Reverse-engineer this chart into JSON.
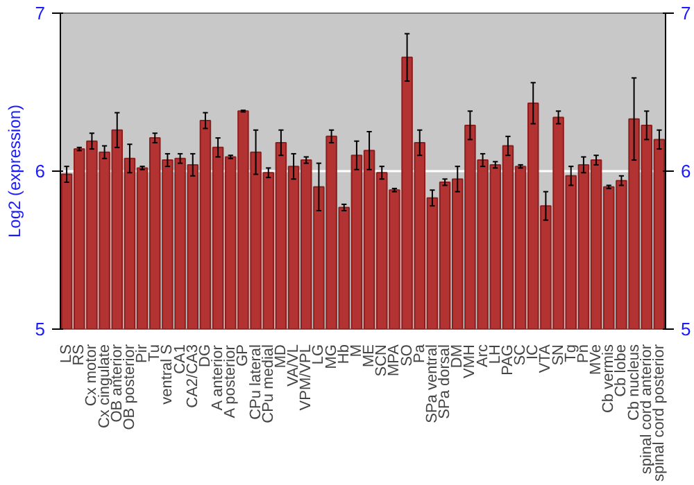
{
  "chart_data": {
    "type": "bar",
    "ylabel": "Log2 (expression)",
    "categories": [
      "LS",
      "RS",
      "Cx motor",
      "Cx cingulate",
      "OB anterior",
      "OB posterior",
      "Pir",
      "Tu",
      "ventral S",
      "CA1",
      "CA2/CA3",
      "DG",
      "A anterior",
      "A posterior",
      "GP",
      "CPu lateral",
      "CPu medial",
      "MD",
      "VA/VL",
      "VPM/VPL",
      "LG",
      "MG",
      "Hb",
      "M",
      "ME",
      "SCN",
      "MPA",
      "SO",
      "Pa",
      "SPa ventral",
      "SPa dorsal",
      "DM",
      "VMH",
      "Arc",
      "LH",
      "PAG",
      "SC",
      "IC",
      "VTA",
      "SN",
      "Tg",
      "Pn",
      "MVe",
      "Cb vermis",
      "Cb lobe",
      "Cb nucleus",
      "spinal cord anterior",
      "spinal cord posterior"
    ],
    "values": [
      5.98,
      6.14,
      6.19,
      6.12,
      6.26,
      6.08,
      6.02,
      6.21,
      6.07,
      6.08,
      6.04,
      6.32,
      6.15,
      6.09,
      6.38,
      6.12,
      5.99,
      6.18,
      6.03,
      6.07,
      5.9,
      6.22,
      5.77,
      6.1,
      6.13,
      5.99,
      5.88,
      6.72,
      6.18,
      5.83,
      5.93,
      5.95,
      6.29,
      6.07,
      6.04,
      6.16,
      6.03,
      6.43,
      5.78,
      6.34,
      5.97,
      6.04,
      6.07,
      5.9,
      5.94,
      6.33,
      6.29,
      6.2
    ],
    "errors": [
      0.05,
      0.01,
      0.05,
      0.04,
      0.11,
      0.09,
      0.01,
      0.03,
      0.04,
      0.03,
      0.07,
      0.05,
      0.06,
      0.01,
      0.005,
      0.14,
      0.03,
      0.08,
      0.08,
      0.02,
      0.15,
      0.04,
      0.02,
      0.09,
      0.12,
      0.04,
      0.01,
      0.15,
      0.08,
      0.05,
      0.02,
      0.08,
      0.09,
      0.04,
      0.02,
      0.06,
      0.01,
      0.13,
      0.09,
      0.04,
      0.06,
      0.05,
      0.03,
      0.01,
      0.03,
      0.26,
      0.09,
      0.06
    ],
    "color": "#b33333",
    "ylim": [
      5,
      7
    ],
    "yticks": [
      5,
      6,
      7
    ],
    "y2lim": [
      5,
      7
    ],
    "y2ticks": [
      5,
      6,
      7
    ],
    "grid": "y"
  }
}
